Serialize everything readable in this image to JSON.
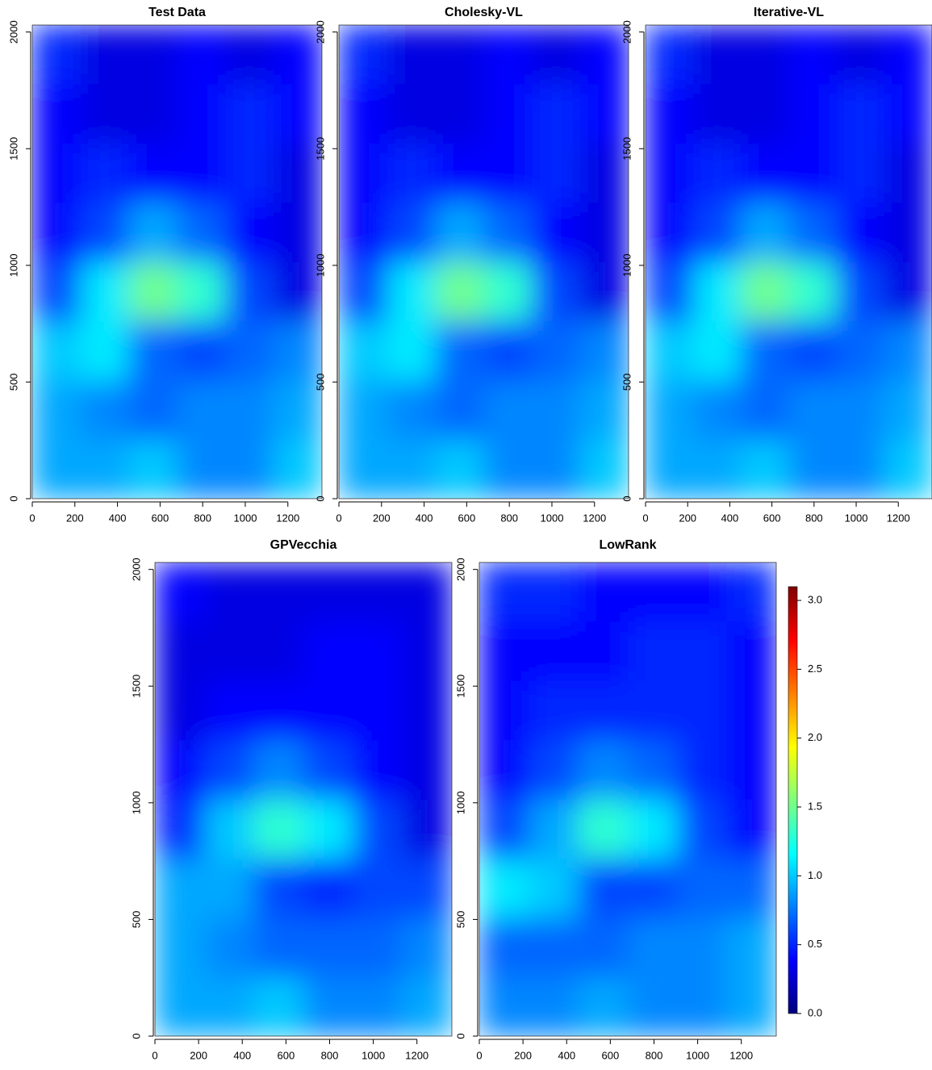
{
  "chart_data": [
    {
      "type": "heatmap",
      "title": "Test Data",
      "xbins": [
        0,
        227,
        453,
        680,
        907,
        1133,
        1360
      ],
      "ybins": [
        0,
        254,
        508,
        762,
        1016,
        1270,
        1524,
        1778,
        2032
      ],
      "z": [
        [
          0.9,
          0.9,
          1.0,
          0.8,
          0.8,
          1.0
        ],
        [
          0.9,
          0.8,
          0.7,
          0.8,
          0.8,
          0.9
        ],
        [
          1.0,
          1.1,
          0.7,
          0.6,
          0.7,
          0.8
        ],
        [
          0.6,
          1.1,
          1.5,
          1.3,
          0.6,
          0.3
        ],
        [
          0.4,
          0.6,
          0.9,
          0.7,
          0.4,
          0.3
        ],
        [
          0.4,
          0.5,
          0.4,
          0.4,
          0.5,
          0.3
        ],
        [
          0.4,
          0.3,
          0.3,
          0.4,
          0.5,
          0.4
        ],
        [
          0.5,
          0.3,
          0.3,
          0.4,
          0.3,
          0.4
        ]
      ],
      "xlim": [
        0,
        1360
      ],
      "ylim": [
        0,
        2030
      ],
      "xticks": [
        0,
        200,
        400,
        600,
        800,
        1000,
        1200
      ],
      "yticks": [
        0,
        500,
        1000,
        1500,
        2000
      ]
    },
    {
      "type": "heatmap",
      "title": "Cholesky-VL",
      "xbins": [
        0,
        227,
        453,
        680,
        907,
        1133,
        1360
      ],
      "ybins": [
        0,
        254,
        508,
        762,
        1016,
        1270,
        1524,
        1778,
        2032
      ],
      "z": [
        [
          0.9,
          0.9,
          1.0,
          0.8,
          0.8,
          1.0
        ],
        [
          0.9,
          0.8,
          0.7,
          0.8,
          0.8,
          0.9
        ],
        [
          1.0,
          1.1,
          0.7,
          0.6,
          0.7,
          0.8
        ],
        [
          0.6,
          1.1,
          1.5,
          1.3,
          0.6,
          0.3
        ],
        [
          0.4,
          0.6,
          0.9,
          0.7,
          0.4,
          0.3
        ],
        [
          0.4,
          0.5,
          0.4,
          0.4,
          0.5,
          0.3
        ],
        [
          0.4,
          0.3,
          0.3,
          0.4,
          0.5,
          0.4
        ],
        [
          0.5,
          0.3,
          0.3,
          0.4,
          0.3,
          0.4
        ]
      ],
      "xlim": [
        0,
        1360
      ],
      "ylim": [
        0,
        2030
      ],
      "xticks": [
        0,
        200,
        400,
        600,
        800,
        1000,
        1200
      ],
      "yticks": [
        0,
        500,
        1000,
        1500,
        2000
      ]
    },
    {
      "type": "heatmap",
      "title": "Iterative-VL",
      "xbins": [
        0,
        227,
        453,
        680,
        907,
        1133,
        1360
      ],
      "ybins": [
        0,
        254,
        508,
        762,
        1016,
        1270,
        1524,
        1778,
        2032
      ],
      "z": [
        [
          0.9,
          0.9,
          1.0,
          0.8,
          0.8,
          1.0
        ],
        [
          0.9,
          0.8,
          0.7,
          0.8,
          0.8,
          0.9
        ],
        [
          1.0,
          1.1,
          0.7,
          0.6,
          0.7,
          0.8
        ],
        [
          0.6,
          1.1,
          1.5,
          1.3,
          0.6,
          0.3
        ],
        [
          0.4,
          0.6,
          0.9,
          0.7,
          0.4,
          0.3
        ],
        [
          0.4,
          0.5,
          0.4,
          0.4,
          0.5,
          0.3
        ],
        [
          0.4,
          0.3,
          0.3,
          0.4,
          0.5,
          0.4
        ],
        [
          0.5,
          0.3,
          0.3,
          0.4,
          0.3,
          0.4
        ]
      ],
      "xlim": [
        0,
        1360
      ],
      "ylim": [
        0,
        2030
      ],
      "xticks": [
        0,
        200,
        400,
        600,
        800,
        1000,
        1200
      ],
      "yticks": [
        0,
        500,
        1000,
        1500,
        2000
      ]
    },
    {
      "type": "heatmap",
      "title": "GPVecchia",
      "xbins": [
        0,
        227,
        453,
        680,
        907,
        1133,
        1360
      ],
      "ybins": [
        0,
        254,
        508,
        762,
        1016,
        1270,
        1524,
        1778,
        2032
      ],
      "z": [
        [
          0.9,
          0.9,
          1.0,
          0.8,
          0.8,
          0.9
        ],
        [
          0.9,
          0.8,
          0.7,
          0.7,
          0.7,
          0.8
        ],
        [
          0.9,
          0.9,
          0.6,
          0.5,
          0.6,
          0.6
        ],
        [
          0.5,
          1.0,
          1.3,
          1.1,
          0.6,
          0.3
        ],
        [
          0.4,
          0.6,
          0.8,
          0.6,
          0.4,
          0.3
        ],
        [
          0.3,
          0.4,
          0.4,
          0.4,
          0.4,
          0.3
        ],
        [
          0.3,
          0.3,
          0.3,
          0.4,
          0.4,
          0.3
        ],
        [
          0.4,
          0.3,
          0.3,
          0.3,
          0.3,
          0.3
        ]
      ],
      "xlim": [
        0,
        1360
      ],
      "ylim": [
        0,
        2030
      ],
      "xticks": [
        0,
        200,
        400,
        600,
        800,
        1000,
        1200
      ],
      "yticks": [
        0,
        500,
        1000,
        1500,
        2000
      ]
    },
    {
      "type": "heatmap",
      "title": "LowRank",
      "xbins": [
        0,
        227,
        453,
        680,
        907,
        1133,
        1360
      ],
      "ybins": [
        0,
        254,
        508,
        762,
        1016,
        1270,
        1524,
        1778,
        2032
      ],
      "z": [
        [
          0.8,
          0.8,
          0.9,
          0.8,
          0.8,
          0.9
        ],
        [
          0.7,
          0.7,
          0.7,
          0.8,
          0.8,
          0.9
        ],
        [
          1.1,
          1.0,
          0.6,
          0.6,
          0.7,
          0.7
        ],
        [
          0.6,
          0.9,
          1.3,
          1.1,
          0.6,
          0.4
        ],
        [
          0.4,
          0.6,
          0.8,
          0.7,
          0.5,
          0.4
        ],
        [
          0.4,
          0.5,
          0.5,
          0.5,
          0.5,
          0.4
        ],
        [
          0.4,
          0.4,
          0.4,
          0.5,
          0.5,
          0.4
        ],
        [
          0.5,
          0.5,
          0.4,
          0.4,
          0.4,
          0.5
        ]
      ],
      "xlim": [
        0,
        1360
      ],
      "ylim": [
        0,
        2030
      ],
      "xticks": [
        0,
        200,
        400,
        600,
        800,
        1000,
        1200
      ],
      "yticks": [
        0,
        500,
        1000,
        1500,
        2000
      ],
      "colorbar": {
        "zlim": [
          0,
          3.1
        ],
        "ticks": [
          {
            "value": 0,
            "label": "0.0"
          },
          {
            "value": 0.5,
            "label": "0.5"
          },
          {
            "value": 1,
            "label": "1.0"
          },
          {
            "value": 1.5,
            "label": "1.5"
          },
          {
            "value": 2,
            "label": "2.0"
          },
          {
            "value": 2.5,
            "label": "2.5"
          },
          {
            "value": 3,
            "label": "3.0"
          }
        ],
        "colorscale": [
          "#00007F",
          "#0000FF",
          "#007FFF",
          "#00FFFF",
          "#7FFF7F",
          "#FFFF00",
          "#FF7F00",
          "#FF0000",
          "#7F0000"
        ]
      }
    }
  ]
}
